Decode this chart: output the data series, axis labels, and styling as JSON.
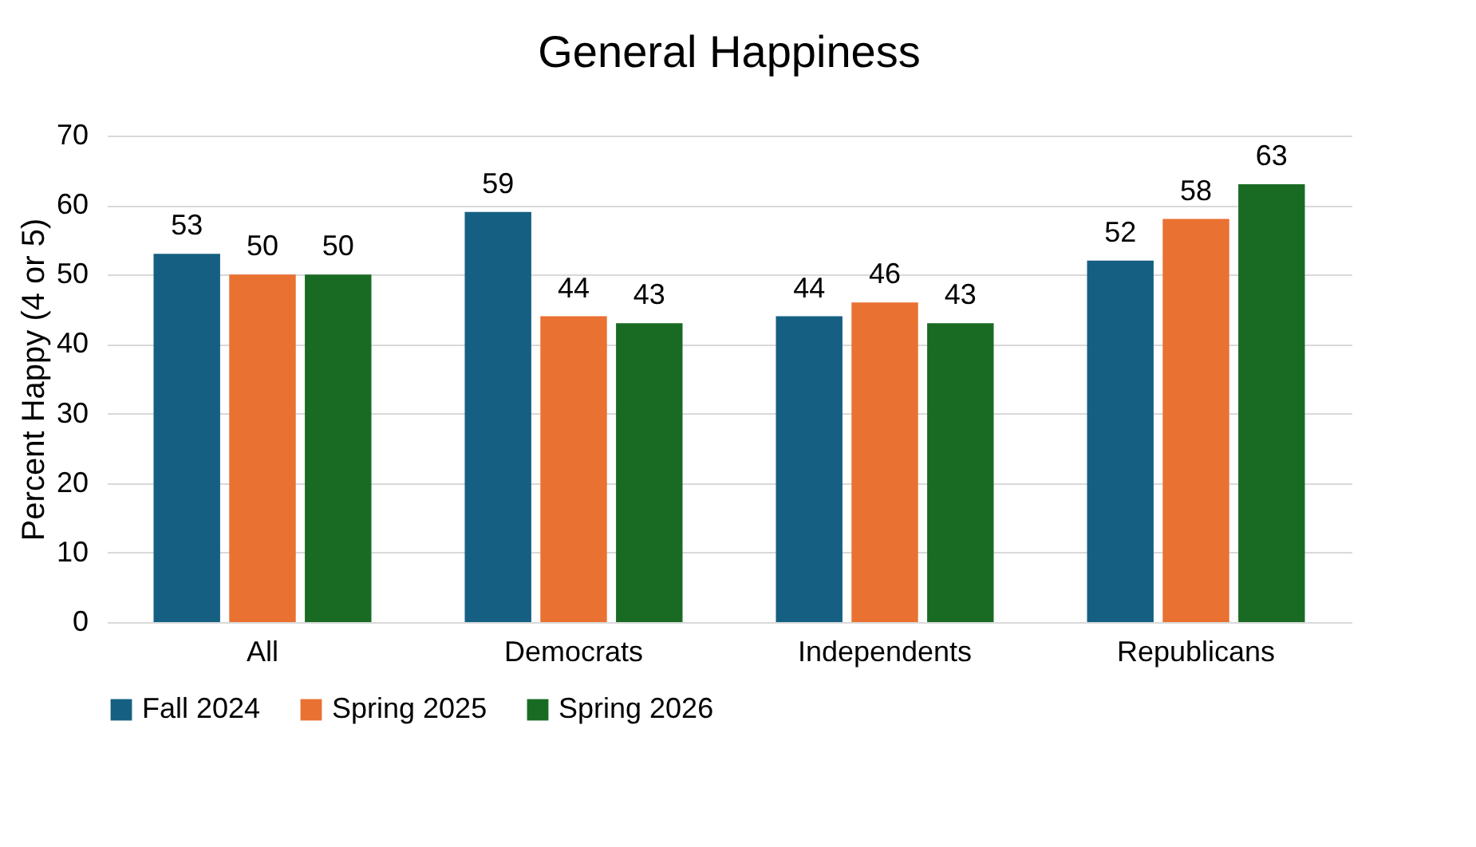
{
  "chart_data": {
    "type": "bar",
    "title": "General Happiness",
    "ylabel": "Percent Happy (4 or 5)",
    "categories": [
      "All",
      "Democrats",
      "Independents",
      "Republicans"
    ],
    "series": [
      {
        "name": "Fall 2024",
        "color": "#156082",
        "values": [
          53,
          59,
          44,
          52
        ]
      },
      {
        "name": "Spring 2025",
        "color": "#e97132",
        "values": [
          50,
          44,
          46,
          58
        ]
      },
      {
        "name": "Spring 2026",
        "color": "#196b24",
        "values": [
          50,
          43,
          43,
          63
        ]
      }
    ],
    "ylim": [
      0,
      70
    ],
    "yticks": [
      0,
      10,
      20,
      30,
      40,
      50,
      60,
      70
    ],
    "grid": "y",
    "legend": "bottom",
    "data_labels": true
  }
}
